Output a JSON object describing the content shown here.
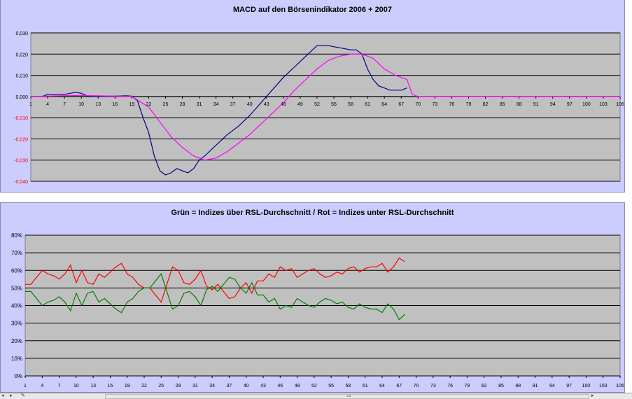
{
  "chart_data": [
    {
      "type": "line",
      "title": "MACD auf den Börsenindikator 2006 + 2007",
      "xlabel": "",
      "ylabel": "",
      "ylim": [
        -0.04,
        0.03
      ],
      "yticks": [
        "0,030",
        "0,020",
        "0,010",
        "0,000",
        "-0,010",
        "-0,020",
        "-0,030",
        "-0,040"
      ],
      "ytick_values": [
        0.03,
        0.02,
        0.01,
        0.0,
        -0.01,
        -0.02,
        -0.03,
        -0.04
      ],
      "negative_tick_color": "#ff0000",
      "xticks": [
        "1",
        "4",
        "7",
        "10",
        "13",
        "16",
        "19",
        "22",
        "25",
        "28",
        "31",
        "34",
        "37",
        "40",
        "43",
        "46",
        "49",
        "52",
        "55",
        "58",
        "61",
        "64",
        "67",
        "70",
        "73",
        "76",
        "79",
        "82",
        "85",
        "88",
        "91",
        "94",
        "97",
        "100",
        "103",
        "106"
      ],
      "x_range": [
        1,
        106
      ],
      "x_axis_at": 0,
      "grid": true,
      "plot_bg": "#c0c0c0",
      "series": [
        {
          "color": "#000080",
          "points": [
            [
              1,
              0
            ],
            [
              3,
              0
            ],
            [
              4,
              0.001
            ],
            [
              7,
              0.001
            ],
            [
              9,
              0.002
            ],
            [
              10,
              0.0015
            ],
            [
              11,
              0.0003
            ],
            [
              13,
              0
            ],
            [
              16,
              0.0002
            ],
            [
              18,
              0.0003
            ],
            [
              19,
              0.0002
            ],
            [
              20,
              -0.002
            ],
            [
              21,
              -0.01
            ],
            [
              22,
              -0.017
            ],
            [
              23,
              -0.028
            ],
            [
              24,
              -0.035
            ],
            [
              25,
              -0.037
            ],
            [
              26,
              -0.036
            ],
            [
              27,
              -0.034
            ],
            [
              28,
              -0.035
            ],
            [
              29,
              -0.036
            ],
            [
              30,
              -0.034
            ],
            [
              31,
              -0.03
            ],
            [
              32,
              -0.028
            ],
            [
              34,
              -0.023
            ],
            [
              36,
              -0.018
            ],
            [
              38,
              -0.014
            ],
            [
              40,
              -0.009
            ],
            [
              42,
              -0.003
            ],
            [
              44,
              0.003
            ],
            [
              46,
              0.009
            ],
            [
              48,
              0.014
            ],
            [
              50,
              0.019
            ],
            [
              52,
              0.024
            ],
            [
              54,
              0.024
            ],
            [
              56,
              0.023
            ],
            [
              58,
              0.022
            ],
            [
              59,
              0.022
            ],
            [
              60,
              0.02
            ],
            [
              61,
              0.013
            ],
            [
              62,
              0.008
            ],
            [
              63,
              0.005
            ],
            [
              64,
              0.004
            ],
            [
              65,
              0.003
            ],
            [
              66,
              0.003
            ],
            [
              67,
              0.003
            ],
            [
              68,
              0.004
            ]
          ]
        },
        {
          "color": "#ff00ff",
          "points": [
            [
              1,
              0
            ],
            [
              9,
              0.0005
            ],
            [
              13,
              0.0003
            ],
            [
              19,
              0
            ],
            [
              22,
              -0.005
            ],
            [
              24,
              -0.012
            ],
            [
              26,
              -0.019
            ],
            [
              28,
              -0.024
            ],
            [
              30,
              -0.028
            ],
            [
              32,
              -0.03
            ],
            [
              34,
              -0.029
            ],
            [
              36,
              -0.026
            ],
            [
              38,
              -0.022
            ],
            [
              40,
              -0.018
            ],
            [
              42,
              -0.013
            ],
            [
              44,
              -0.008
            ],
            [
              46,
              -0.003
            ],
            [
              48,
              0.003
            ],
            [
              50,
              0.008
            ],
            [
              52,
              0.013
            ],
            [
              54,
              0.017
            ],
            [
              56,
              0.019
            ],
            [
              58,
              0.02
            ],
            [
              60,
              0.02
            ],
            [
              62,
              0.018
            ],
            [
              64,
              0.013
            ],
            [
              66,
              0.01
            ],
            [
              68,
              0.008
            ],
            [
              69,
              0.001
            ],
            [
              70,
              0
            ],
            [
              106,
              0
            ]
          ]
        }
      ]
    },
    {
      "type": "line",
      "title": "Grün = Indizes über RSL-Durchschnitt / Rot = Indizes unter RSL-Durchschnitt",
      "xlabel": "",
      "ylabel": "",
      "ylim": [
        0,
        80
      ],
      "yticks": [
        "80%",
        "70%",
        "60%",
        "50%",
        "40%",
        "30%",
        "20%",
        "10%",
        "0%"
      ],
      "ytick_values": [
        80,
        70,
        60,
        50,
        40,
        30,
        20,
        10,
        0
      ],
      "xticks": [
        "1",
        "4",
        "7",
        "10",
        "13",
        "16",
        "19",
        "22",
        "25",
        "28",
        "31",
        "34",
        "37",
        "40",
        "43",
        "46",
        "49",
        "52",
        "55",
        "58",
        "61",
        "64",
        "67",
        "70",
        "73",
        "76",
        "79",
        "82",
        "85",
        "88",
        "91",
        "94",
        "97",
        "100",
        "103",
        "106"
      ],
      "x_range": [
        1,
        106
      ],
      "x_axis_at": 0,
      "grid": true,
      "plot_bg": "#c0c0c0",
      "series": [
        {
          "color": "#ff0000",
          "points": [
            [
              1,
              52
            ],
            [
              2,
              52
            ],
            [
              3,
              56
            ],
            [
              4,
              60
            ],
            [
              5,
              58
            ],
            [
              6,
              57
            ],
            [
              7,
              55
            ],
            [
              8,
              58
            ],
            [
              9,
              63
            ],
            [
              10,
              53
            ],
            [
              11,
              60
            ],
            [
              12,
              53
            ],
            [
              13,
              52
            ],
            [
              14,
              58
            ],
            [
              15,
              56
            ],
            [
              16,
              59
            ],
            [
              17,
              62
            ],
            [
              18,
              64
            ],
            [
              19,
              58
            ],
            [
              20,
              56
            ],
            [
              21,
              52
            ],
            [
              22,
              50
            ],
            [
              23,
              50
            ],
            [
              24,
              46
            ],
            [
              25,
              42
            ],
            [
              26,
              52
            ],
            [
              27,
              62
            ],
            [
              28,
              60
            ],
            [
              29,
              53
            ],
            [
              30,
              52
            ],
            [
              31,
              55
            ],
            [
              32,
              60
            ],
            [
              33,
              51
            ],
            [
              34,
              49
            ],
            [
              35,
              52
            ],
            [
              36,
              48
            ],
            [
              37,
              44
            ],
            [
              38,
              45
            ],
            [
              39,
              50
            ],
            [
              40,
              53
            ],
            [
              41,
              47
            ],
            [
              42,
              54
            ],
            [
              43,
              54
            ],
            [
              44,
              58
            ],
            [
              45,
              56
            ],
            [
              46,
              62
            ],
            [
              47,
              60
            ],
            [
              48,
              61
            ],
            [
              49,
              56
            ],
            [
              50,
              58
            ],
            [
              51,
              60
            ],
            [
              52,
              61
            ],
            [
              53,
              58
            ],
            [
              54,
              56
            ],
            [
              55,
              57
            ],
            [
              56,
              59
            ],
            [
              57,
              58
            ],
            [
              58,
              61
            ],
            [
              59,
              62
            ],
            [
              60,
              59
            ],
            [
              61,
              61
            ],
            [
              62,
              62
            ],
            [
              63,
              62
            ],
            [
              64,
              64
            ],
            [
              65,
              59
            ],
            [
              66,
              62
            ],
            [
              67,
              67
            ],
            [
              68,
              65
            ]
          ]
        },
        {
          "color": "#008000",
          "points": [
            [
              1,
              48
            ],
            [
              2,
              48
            ],
            [
              3,
              44
            ],
            [
              4,
              40
            ],
            [
              5,
              42
            ],
            [
              6,
              43
            ],
            [
              7,
              45
            ],
            [
              8,
              42
            ],
            [
              9,
              37
            ],
            [
              10,
              47
            ],
            [
              11,
              40
            ],
            [
              12,
              47
            ],
            [
              13,
              48
            ],
            [
              14,
              42
            ],
            [
              15,
              44
            ],
            [
              16,
              41
            ],
            [
              17,
              38
            ],
            [
              18,
              36
            ],
            [
              19,
              42
            ],
            [
              20,
              44
            ],
            [
              21,
              48
            ],
            [
              22,
              50
            ],
            [
              23,
              50
            ],
            [
              24,
              54
            ],
            [
              25,
              58
            ],
            [
              26,
              48
            ],
            [
              27,
              38
            ],
            [
              28,
              40
            ],
            [
              29,
              47
            ],
            [
              30,
              48
            ],
            [
              31,
              45
            ],
            [
              32,
              40
            ],
            [
              33,
              49
            ],
            [
              34,
              51
            ],
            [
              35,
              48
            ],
            [
              36,
              52
            ],
            [
              37,
              56
            ],
            [
              38,
              55
            ],
            [
              39,
              50
            ],
            [
              40,
              47
            ],
            [
              41,
              53
            ],
            [
              42,
              46
            ],
            [
              43,
              46
            ],
            [
              44,
              42
            ],
            [
              45,
              44
            ],
            [
              46,
              38
            ],
            [
              47,
              40
            ],
            [
              48,
              39
            ],
            [
              49,
              44
            ],
            [
              50,
              42
            ],
            [
              51,
              40
            ],
            [
              52,
              39
            ],
            [
              53,
              42
            ],
            [
              54,
              44
            ],
            [
              55,
              43
            ],
            [
              56,
              41
            ],
            [
              57,
              42
            ],
            [
              58,
              39
            ],
            [
              59,
              38
            ],
            [
              60,
              41
            ],
            [
              61,
              39
            ],
            [
              62,
              38
            ],
            [
              63,
              38
            ],
            [
              64,
              36
            ],
            [
              65,
              41
            ],
            [
              66,
              38
            ],
            [
              67,
              32
            ],
            [
              68,
              35
            ]
          ]
        }
      ]
    }
  ]
}
